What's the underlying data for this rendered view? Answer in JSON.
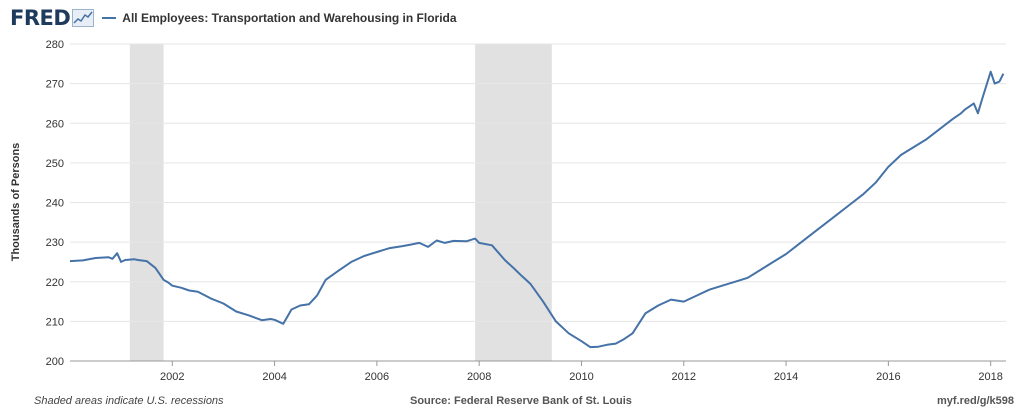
{
  "header": {
    "logo_text": "FRED",
    "series_title": "All Employees: Transportation and Warehousing in Florida",
    "series_color": "#4572a7"
  },
  "footer": {
    "note": "Shaded areas indicate U.S. recessions",
    "source": "Source: Federal Reserve Bank of St. Louis",
    "link": "myf.red/g/k598"
  },
  "chart_data": {
    "type": "line",
    "title": "All Employees: Transportation and Warehousing in Florida",
    "ylabel": "Thousands of Persons",
    "xlabel": "",
    "xlim": [
      2000.0,
      2018.3
    ],
    "ylim": [
      200,
      280
    ],
    "yticks": [
      200,
      210,
      220,
      230,
      240,
      250,
      260,
      270,
      280
    ],
    "xticks": [
      2002,
      2004,
      2006,
      2008,
      2010,
      2012,
      2014,
      2016,
      2018
    ],
    "grid": true,
    "legend": "top-left",
    "recessions": [
      [
        2001.17,
        2001.83
      ],
      [
        2007.92,
        2009.42
      ]
    ],
    "series": [
      {
        "name": "All Employees: Transportation and Warehousing in Florida",
        "color": "#4572a7",
        "x": [
          2000.0,
          2000.25,
          2000.5,
          2000.75,
          2000.83,
          2000.92,
          2001.0,
          2001.08,
          2001.17,
          2001.25,
          2001.33,
          2001.5,
          2001.67,
          2001.83,
          2001.92,
          2002.0,
          2002.17,
          2002.33,
          2002.5,
          2002.75,
          2003.0,
          2003.25,
          2003.5,
          2003.75,
          2003.92,
          2004.0,
          2004.17,
          2004.33,
          2004.5,
          2004.67,
          2004.83,
          2005.0,
          2005.25,
          2005.5,
          2005.75,
          2006.0,
          2006.25,
          2006.5,
          2006.67,
          2006.83,
          2007.0,
          2007.17,
          2007.33,
          2007.5,
          2007.75,
          2007.92,
          2008.0,
          2008.25,
          2008.5,
          2008.67,
          2008.83,
          2009.0,
          2009.25,
          2009.5,
          2009.75,
          2010.0,
          2010.17,
          2010.33,
          2010.5,
          2010.67,
          2010.83,
          2011.0,
          2011.25,
          2011.5,
          2011.75,
          2012.0,
          2012.25,
          2012.5,
          2012.75,
          2013.0,
          2013.25,
          2013.5,
          2013.75,
          2014.0,
          2014.25,
          2014.5,
          2014.75,
          2015.0,
          2015.25,
          2015.5,
          2015.75,
          2016.0,
          2016.25,
          2016.5,
          2016.75,
          2017.0,
          2017.25,
          2017.42,
          2017.5,
          2017.67,
          2017.75,
          2017.83,
          2018.0,
          2018.08,
          2018.17,
          2018.25
        ],
        "values": [
          225.2,
          225.4,
          226.0,
          226.2,
          225.8,
          227.2,
          225.0,
          225.5,
          225.6,
          225.7,
          225.5,
          225.2,
          223.5,
          220.5,
          219.8,
          219.0,
          218.5,
          217.8,
          217.5,
          215.8,
          214.5,
          212.5,
          211.5,
          210.3,
          210.6,
          210.4,
          209.4,
          213.0,
          214.0,
          214.3,
          216.5,
          220.5,
          222.8,
          225.0,
          226.5,
          227.5,
          228.5,
          229.0,
          229.4,
          229.8,
          228.8,
          230.4,
          229.8,
          230.3,
          230.2,
          230.9,
          229.8,
          229.2,
          225.5,
          223.5,
          221.5,
          219.5,
          215.0,
          210.0,
          207.0,
          205.0,
          203.5,
          203.6,
          204.1,
          204.4,
          205.5,
          207.0,
          212.0,
          214.0,
          215.5,
          215.0,
          216.5,
          218.0,
          219.0,
          220.0,
          221.0,
          223.0,
          225.0,
          227.0,
          229.5,
          232.0,
          234.5,
          237.0,
          239.5,
          242.0,
          245.0,
          249.0,
          252.0,
          254.0,
          256.0,
          258.5,
          261.0,
          262.5,
          263.5,
          265.0,
          262.5,
          266.0,
          273.0,
          270.0,
          270.5,
          272.5
        ]
      }
    ]
  }
}
